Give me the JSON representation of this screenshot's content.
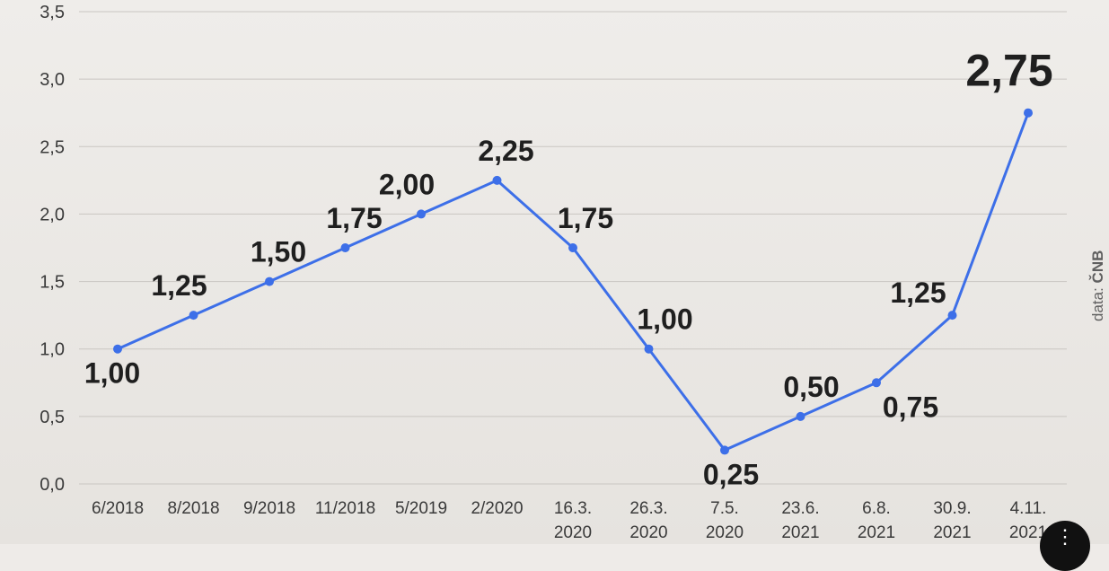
{
  "chart_data": {
    "type": "line",
    "categories": [
      [
        "6/2018"
      ],
      [
        "8/2018"
      ],
      [
        "9/2018"
      ],
      [
        "11/2018"
      ],
      [
        "5/2019"
      ],
      [
        "2/2020"
      ],
      [
        "16.3.",
        "2020"
      ],
      [
        "26.3.",
        "2020"
      ],
      [
        "7.5.",
        "2020"
      ],
      [
        "23.6.",
        "2021"
      ],
      [
        "6.8.",
        "2021"
      ],
      [
        "30.9.",
        "2021"
      ],
      [
        "4.11.",
        "2021"
      ]
    ],
    "values": [
      1.0,
      1.25,
      1.5,
      1.75,
      2.0,
      2.25,
      1.75,
      1.0,
      0.25,
      0.5,
      0.75,
      1.25,
      2.75
    ],
    "data_labels": [
      "1,00",
      "1,25",
      "1,50",
      "1,75",
      "2,00",
      "2,25",
      "1,75",
      "1,00",
      "0,25",
      "0,50",
      "0,75",
      "1,25",
      "2,75"
    ],
    "label_position": [
      "below",
      "above",
      "above",
      "above",
      "above",
      "above",
      "above",
      "above",
      "below",
      "above",
      "below",
      "above",
      "above"
    ],
    "emphasized_label_index": 12,
    "yticks": [
      "0,0",
      "0,5",
      "1,0",
      "1,5",
      "2,0",
      "2,5",
      "3,0",
      "3,5"
    ],
    "ytick_values": [
      0,
      0.5,
      1.0,
      1.5,
      2.0,
      2.5,
      3.0,
      3.5
    ],
    "ylim": [
      0,
      3.5
    ],
    "grid": true,
    "line_color": "#3d6fe8",
    "grid_color": "#c9c6c2",
    "source_prefix": "data: ",
    "source_name": "ČNB"
  },
  "corner_button_icon": "more-icon"
}
